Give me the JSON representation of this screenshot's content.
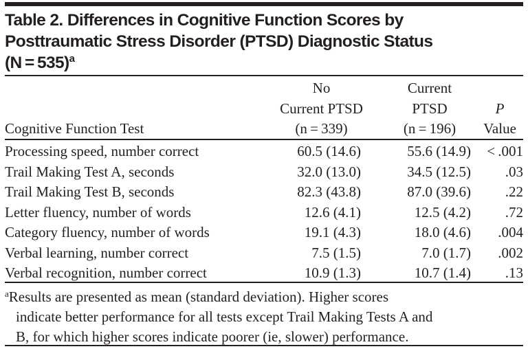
{
  "title": "Table 2. Differences in Cognitive Function Scores by Posttraumatic Stress Disorder (PTSD) Diagnostic Status (N = 535)",
  "title_lines": [
    "Table 2. Differences in Cognitive Function Scores by",
    "Posttraumatic Stress Disorder (PTSD) Diagnostic Status",
    "(N = 535)"
  ],
  "title_footnote_marker": "a",
  "columns": {
    "test": "Cognitive Function Test",
    "no_ptsd": [
      "No",
      "Current PTSD",
      "(n = 339)"
    ],
    "ptsd": [
      "Current",
      "PTSD",
      "(n = 196)"
    ],
    "p": [
      "P",
      "Value"
    ]
  },
  "rows": [
    {
      "test": "Processing speed, number correct",
      "no_ptsd": "60.5 (14.6)",
      "ptsd": "55.6 (14.9)",
      "p": "< .001"
    },
    {
      "test": "Trail Making Test A, seconds",
      "no_ptsd": "32.0 (13.0)",
      "ptsd": "34.5 (12.5)",
      "p": ".03"
    },
    {
      "test": "Trail Making Test B, seconds",
      "no_ptsd": "82.3 (43.8)",
      "ptsd": "87.0 (39.6)",
      "p": ".22"
    },
    {
      "test": "Letter fluency, number of words",
      "no_ptsd": "12.6 (4.1)",
      "ptsd": "12.5 (4.2)",
      "p": ".72"
    },
    {
      "test": "Category fluency, number of words",
      "no_ptsd": "19.1 (4.3)",
      "ptsd": "18.0 (4.6)",
      "p": ".004"
    },
    {
      "test": "Verbal learning, number correct",
      "no_ptsd": "7.5 (1.5)",
      "ptsd": "7.0 (1.7)",
      "p": ".002"
    },
    {
      "test": "Verbal recognition, number correct",
      "no_ptsd": "10.9 (1.3)",
      "ptsd": "10.7 (1.4)",
      "p": ".13"
    }
  ],
  "footnote": {
    "marker": "a",
    "lines": [
      "Results are presented as mean (standard deviation). Higher scores",
      "indicate better performance for all tests except Trail Making Tests A and",
      "B, for which higher scores indicate poorer (ie, slower) performance."
    ]
  }
}
